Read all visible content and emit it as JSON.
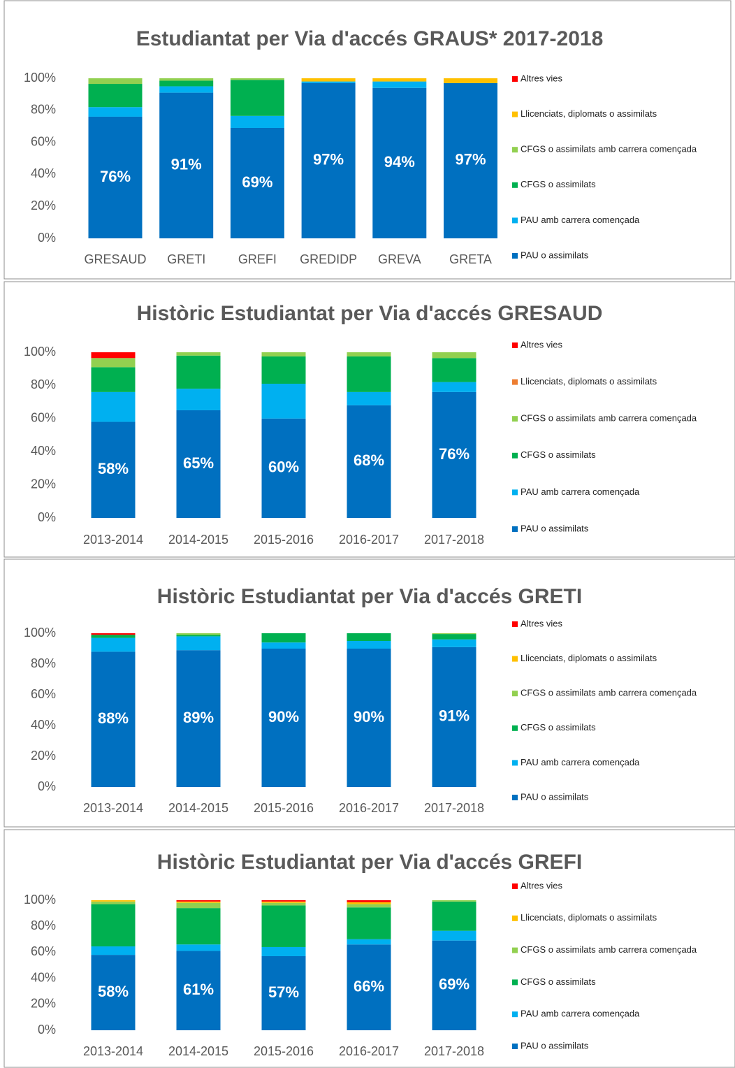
{
  "chart_data": [
    {
      "type": "stacked_bar",
      "title": "Estudiantat per Via d'accés GRAUS* 2017-2018",
      "categories": [
        "GRESAUD",
        "GRETI",
        "GREFI",
        "GREDIDP",
        "GREVA",
        "GRETA"
      ],
      "ylim": [
        0,
        100
      ],
      "yticks": [
        {
          "value": 0,
          "label": "0%"
        },
        {
          "value": 20,
          "label": "20%"
        },
        {
          "value": 40,
          "label": "40%"
        },
        {
          "value": 60,
          "label": "60%"
        },
        {
          "value": 80,
          "label": "80%"
        },
        {
          "value": 100,
          "label": "100%"
        }
      ],
      "series": [
        {
          "name": "PAU o assimilats",
          "color": "#0070c0",
          "values": [
            76,
            91,
            69,
            97,
            94,
            97
          ],
          "value_labels": [
            "76%",
            "91%",
            "69%",
            "97%",
            "94%",
            "97%"
          ]
        },
        {
          "name": "PAU amb carrera començada",
          "color": "#00b0f0",
          "values": [
            6,
            4,
            7.5,
            1,
            4,
            0
          ]
        },
        {
          "name": "CFGS o assimilats",
          "color": "#00b050",
          "values": [
            14.5,
            3.5,
            22.5,
            0,
            0,
            0
          ]
        },
        {
          "name": "CFGS o assimilats amb carrera començada",
          "color": "#92d050",
          "values": [
            3.5,
            1.5,
            1,
            0,
            0,
            0
          ]
        },
        {
          "name": "Llicenciats, diplomats o assimilats",
          "color": "#ffc000",
          "values": [
            0,
            0,
            0,
            2,
            2,
            3
          ]
        },
        {
          "name": "Altres vies",
          "color": "#ff0000",
          "values": [
            0,
            0,
            0,
            0,
            0,
            0
          ]
        }
      ]
    },
    {
      "type": "stacked_bar",
      "title": "Històric Estudiantat per Via d'accés GRESAUD",
      "categories": [
        "2013-2014",
        "2014-2015",
        "2015-2016",
        "2016-2017",
        "2017-2018"
      ],
      "ylim": [
        0,
        100
      ],
      "yticks": [
        {
          "value": 0,
          "label": "0%"
        },
        {
          "value": 20,
          "label": "20%"
        },
        {
          "value": 40,
          "label": "40%"
        },
        {
          "value": 60,
          "label": "60%"
        },
        {
          "value": 80,
          "label": "80%"
        },
        {
          "value": 100,
          "label": "100%"
        }
      ],
      "series": [
        {
          "name": "PAU o assimilats",
          "color": "#0070c0",
          "values": [
            58,
            65,
            60,
            68,
            76
          ],
          "value_labels": [
            "58%",
            "65%",
            "60%",
            "68%",
            "76%"
          ]
        },
        {
          "name": "PAU amb carrera començada",
          "color": "#00b0f0",
          "values": [
            18,
            13,
            21,
            8,
            6
          ]
        },
        {
          "name": "CFGS o assimilats",
          "color": "#00b050",
          "values": [
            15,
            20,
            16.5,
            21.5,
            14.5
          ]
        },
        {
          "name": "CFGS o assimilats amb carrera començada",
          "color": "#92d050",
          "values": [
            5.5,
            2,
            2.5,
            2.5,
            3.5
          ]
        },
        {
          "name": "Llicenciats, diplomats o assimilats",
          "color": "#ed7d31",
          "values": [
            0,
            0,
            0,
            0,
            0
          ]
        },
        {
          "name": "Altres vies",
          "color": "#ff0000",
          "values": [
            3.5,
            0,
            0,
            0,
            0
          ]
        }
      ]
    },
    {
      "type": "stacked_bar",
      "title": "Històric Estudiantat per Via d'accés GRETI",
      "categories": [
        "2013-2014",
        "2014-2015",
        "2015-2016",
        "2016-2017",
        "2017-2018"
      ],
      "ylim": [
        0,
        100
      ],
      "yticks": [
        {
          "value": 0,
          "label": "0%"
        },
        {
          "value": 20,
          "label": "20%"
        },
        {
          "value": 40,
          "label": "40%"
        },
        {
          "value": 60,
          "label": "60%"
        },
        {
          "value": 80,
          "label": "80%"
        },
        {
          "value": 100,
          "label": "100%"
        }
      ],
      "series": [
        {
          "name": "PAU o assimilats",
          "color": "#0070c0",
          "values": [
            88,
            89,
            90,
            90,
            91
          ],
          "value_labels": [
            "88%",
            "89%",
            "90%",
            "90%",
            "91%"
          ]
        },
        {
          "name": "PAU amb carrera començada",
          "color": "#00b0f0",
          "values": [
            9,
            9,
            4,
            5,
            5
          ]
        },
        {
          "name": "CFGS o assimilats",
          "color": "#00b050",
          "values": [
            2,
            1,
            6,
            5,
            3.5
          ]
        },
        {
          "name": "CFGS o assimilats amb carrera començada",
          "color": "#92d050",
          "values": [
            0,
            1,
            0,
            0,
            0.5
          ]
        },
        {
          "name": "Llicenciats, diplomats o assimilats",
          "color": "#ffc000",
          "values": [
            0,
            0,
            0,
            0,
            0
          ]
        },
        {
          "name": "Altres vies",
          "color": "#ff0000",
          "values": [
            1,
            0,
            0,
            0,
            0
          ]
        }
      ]
    },
    {
      "type": "stacked_bar",
      "title": "Històric Estudiantat per Via d'accés GREFI",
      "categories": [
        "2013-2014",
        "2014-2015",
        "2015-2016",
        "2016-2017",
        "2017-2018"
      ],
      "ylim": [
        0,
        100
      ],
      "yticks": [
        {
          "value": 0,
          "label": "0%"
        },
        {
          "value": 20,
          "label": "20%"
        },
        {
          "value": 40,
          "label": "40%"
        },
        {
          "value": 60,
          "label": "60%"
        },
        {
          "value": 80,
          "label": "80%"
        },
        {
          "value": 100,
          "label": "100%"
        }
      ],
      "series": [
        {
          "name": "PAU o assimilats",
          "color": "#0070c0",
          "values": [
            58,
            61,
            57,
            66,
            69
          ],
          "value_labels": [
            "58%",
            "61%",
            "57%",
            "66%",
            "69%"
          ]
        },
        {
          "name": "PAU amb carrera començada",
          "color": "#00b0f0",
          "values": [
            6.5,
            5,
            7,
            4,
            7.5
          ]
        },
        {
          "name": "CFGS o assimilats",
          "color": "#00b050",
          "values": [
            32.5,
            28,
            32,
            24.5,
            22.5
          ]
        },
        {
          "name": "CFGS o assimilats amb carrera començada",
          "color": "#92d050",
          "values": [
            2,
            4,
            2,
            2.5,
            1
          ]
        },
        {
          "name": "Llicenciats, diplomats o assimilats",
          "color": "#ffc000",
          "values": [
            1,
            1,
            1,
            1.5,
            0
          ]
        },
        {
          "name": "Altres vies",
          "color": "#ff0000",
          "values": [
            0,
            1,
            1,
            1.5,
            0
          ]
        }
      ]
    }
  ]
}
